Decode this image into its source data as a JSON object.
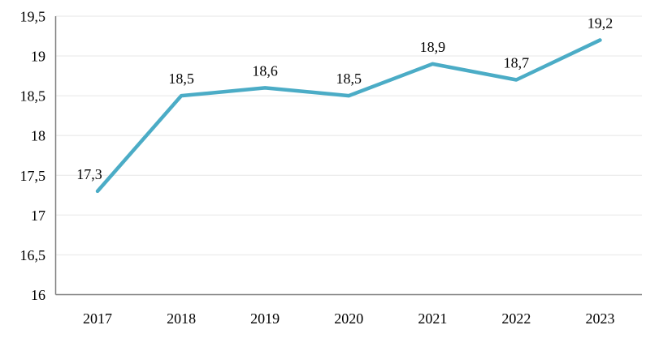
{
  "chart_data": {
    "type": "line",
    "title": "",
    "xlabel": "",
    "ylabel": "",
    "categories": [
      "2017",
      "2018",
      "2019",
      "2020",
      "2021",
      "2022",
      "2023"
    ],
    "series": [
      {
        "name": "value",
        "values": [
          17.3,
          18.5,
          18.6,
          18.5,
          18.9,
          18.7,
          19.2
        ],
        "point_labels": [
          "17,3",
          "18,5",
          "18,6",
          "18,5",
          "18,9",
          "18,7",
          "19,2"
        ]
      }
    ],
    "ylim": [
      16,
      19.5
    ],
    "y_ticks": [
      16,
      16.5,
      17,
      17.5,
      18,
      18.5,
      19,
      19.5
    ],
    "y_tick_labels": [
      "16",
      "16,5",
      "17",
      "17,5",
      "18",
      "18,5",
      "19",
      "19,5"
    ],
    "grid": "horizontal",
    "legend": "none",
    "colors": {
      "line": "#4BACC6",
      "grid": "#EDEDED",
      "axis": "#7F7F7F",
      "text": "#000000"
    }
  }
}
